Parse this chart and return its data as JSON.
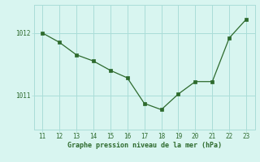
{
  "x": [
    11,
    12,
    13,
    14,
    15,
    16,
    17,
    18,
    19,
    20,
    21,
    22,
    23
  ],
  "y": [
    1012.0,
    1011.85,
    1011.65,
    1011.55,
    1011.4,
    1011.28,
    1010.87,
    1010.77,
    1011.02,
    1011.22,
    1011.22,
    1011.92,
    1012.22
  ],
  "line_color": "#2d6a2d",
  "marker_color": "#2d6a2d",
  "bg_color": "#d8f5f0",
  "grid_color": "#aaddd8",
  "xlabel": "Graphe pression niveau de la mer (hPa)",
  "xlabel_color": "#2d6a2d",
  "tick_color": "#2d6a2d",
  "ytick_labels": [
    "1011",
    "1012"
  ],
  "ytick_values": [
    1011.0,
    1012.0
  ],
  "ylim": [
    1010.45,
    1012.45
  ],
  "xlim": [
    10.5,
    23.5
  ],
  "xticks": [
    11,
    12,
    13,
    14,
    15,
    16,
    17,
    18,
    19,
    20,
    21,
    22,
    23
  ]
}
